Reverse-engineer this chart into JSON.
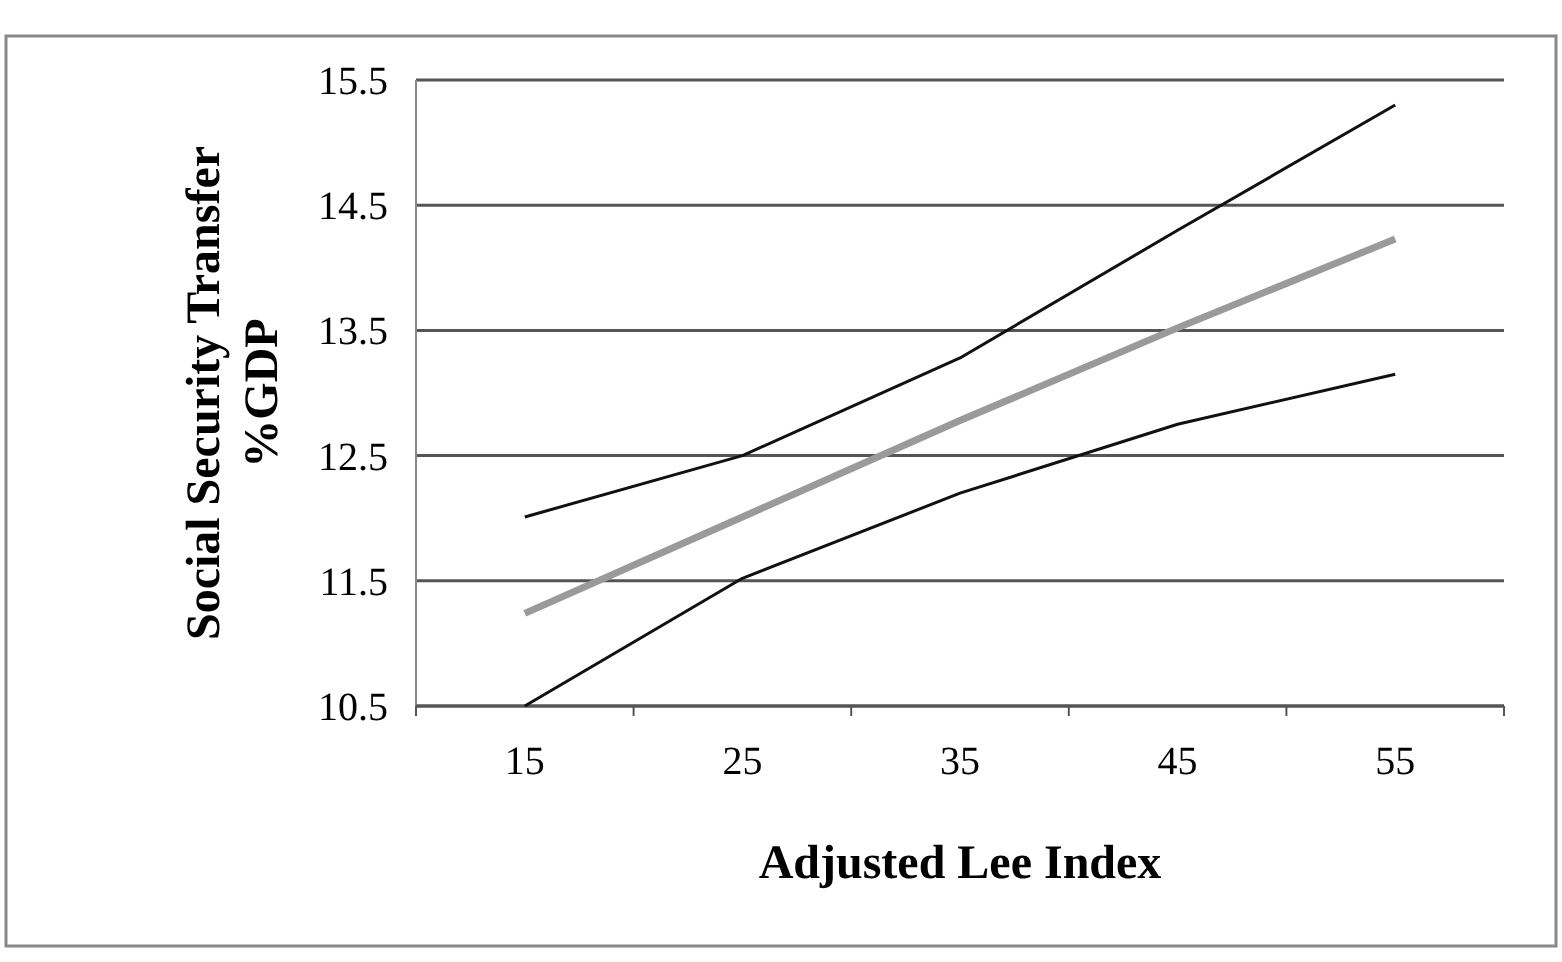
{
  "chart_data": {
    "type": "line",
    "xlabel": "Adjusted Lee Index",
    "ylabel": "Social Security Transfer %GDP",
    "categories": [
      "15",
      "25",
      "35",
      "45",
      "55"
    ],
    "series": [
      {
        "color": "#111111",
        "values": [
          12.01,
          12.5,
          13.28,
          14.3,
          15.3
        ]
      },
      {
        "color": "#9a9a9a",
        "values": [
          11.24,
          12.01,
          12.78,
          13.52,
          14.23
        ]
      },
      {
        "color": "#111111",
        "values": [
          10.5,
          11.52,
          12.2,
          12.75,
          13.15
        ]
      }
    ],
    "ylim": [
      10.5,
      15.5
    ],
    "yticks": [
      10.5,
      11.5,
      12.5,
      13.5,
      14.5,
      15.5
    ],
    "grid": "y",
    "marker": "none",
    "line_style": "solid"
  }
}
